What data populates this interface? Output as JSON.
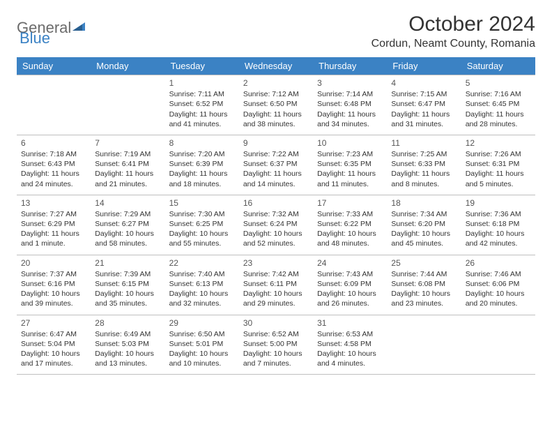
{
  "logo": {
    "text1": "General",
    "text2": "Blue",
    "text1_color": "#6b6b6b",
    "text2_color": "#3b82c4"
  },
  "title": "October 2024",
  "location": "Cordun, Neamt County, Romania",
  "colors": {
    "header_bg": "#3b82c4",
    "header_text": "#ffffff",
    "border": "#bfbfbf",
    "body_text": "#333333"
  },
  "day_headers": [
    "Sunday",
    "Monday",
    "Tuesday",
    "Wednesday",
    "Thursday",
    "Friday",
    "Saturday"
  ],
  "weeks": [
    [
      {
        "num": "",
        "sunrise": "",
        "sunset": "",
        "daylight": ""
      },
      {
        "num": "",
        "sunrise": "",
        "sunset": "",
        "daylight": ""
      },
      {
        "num": "1",
        "sunrise": "Sunrise: 7:11 AM",
        "sunset": "Sunset: 6:52 PM",
        "daylight": "Daylight: 11 hours and 41 minutes."
      },
      {
        "num": "2",
        "sunrise": "Sunrise: 7:12 AM",
        "sunset": "Sunset: 6:50 PM",
        "daylight": "Daylight: 11 hours and 38 minutes."
      },
      {
        "num": "3",
        "sunrise": "Sunrise: 7:14 AM",
        "sunset": "Sunset: 6:48 PM",
        "daylight": "Daylight: 11 hours and 34 minutes."
      },
      {
        "num": "4",
        "sunrise": "Sunrise: 7:15 AM",
        "sunset": "Sunset: 6:47 PM",
        "daylight": "Daylight: 11 hours and 31 minutes."
      },
      {
        "num": "5",
        "sunrise": "Sunrise: 7:16 AM",
        "sunset": "Sunset: 6:45 PM",
        "daylight": "Daylight: 11 hours and 28 minutes."
      }
    ],
    [
      {
        "num": "6",
        "sunrise": "Sunrise: 7:18 AM",
        "sunset": "Sunset: 6:43 PM",
        "daylight": "Daylight: 11 hours and 24 minutes."
      },
      {
        "num": "7",
        "sunrise": "Sunrise: 7:19 AM",
        "sunset": "Sunset: 6:41 PM",
        "daylight": "Daylight: 11 hours and 21 minutes."
      },
      {
        "num": "8",
        "sunrise": "Sunrise: 7:20 AM",
        "sunset": "Sunset: 6:39 PM",
        "daylight": "Daylight: 11 hours and 18 minutes."
      },
      {
        "num": "9",
        "sunrise": "Sunrise: 7:22 AM",
        "sunset": "Sunset: 6:37 PM",
        "daylight": "Daylight: 11 hours and 14 minutes."
      },
      {
        "num": "10",
        "sunrise": "Sunrise: 7:23 AM",
        "sunset": "Sunset: 6:35 PM",
        "daylight": "Daylight: 11 hours and 11 minutes."
      },
      {
        "num": "11",
        "sunrise": "Sunrise: 7:25 AM",
        "sunset": "Sunset: 6:33 PM",
        "daylight": "Daylight: 11 hours and 8 minutes."
      },
      {
        "num": "12",
        "sunrise": "Sunrise: 7:26 AM",
        "sunset": "Sunset: 6:31 PM",
        "daylight": "Daylight: 11 hours and 5 minutes."
      }
    ],
    [
      {
        "num": "13",
        "sunrise": "Sunrise: 7:27 AM",
        "sunset": "Sunset: 6:29 PM",
        "daylight": "Daylight: 11 hours and 1 minute."
      },
      {
        "num": "14",
        "sunrise": "Sunrise: 7:29 AM",
        "sunset": "Sunset: 6:27 PM",
        "daylight": "Daylight: 10 hours and 58 minutes."
      },
      {
        "num": "15",
        "sunrise": "Sunrise: 7:30 AM",
        "sunset": "Sunset: 6:25 PM",
        "daylight": "Daylight: 10 hours and 55 minutes."
      },
      {
        "num": "16",
        "sunrise": "Sunrise: 7:32 AM",
        "sunset": "Sunset: 6:24 PM",
        "daylight": "Daylight: 10 hours and 52 minutes."
      },
      {
        "num": "17",
        "sunrise": "Sunrise: 7:33 AM",
        "sunset": "Sunset: 6:22 PM",
        "daylight": "Daylight: 10 hours and 48 minutes."
      },
      {
        "num": "18",
        "sunrise": "Sunrise: 7:34 AM",
        "sunset": "Sunset: 6:20 PM",
        "daylight": "Daylight: 10 hours and 45 minutes."
      },
      {
        "num": "19",
        "sunrise": "Sunrise: 7:36 AM",
        "sunset": "Sunset: 6:18 PM",
        "daylight": "Daylight: 10 hours and 42 minutes."
      }
    ],
    [
      {
        "num": "20",
        "sunrise": "Sunrise: 7:37 AM",
        "sunset": "Sunset: 6:16 PM",
        "daylight": "Daylight: 10 hours and 39 minutes."
      },
      {
        "num": "21",
        "sunrise": "Sunrise: 7:39 AM",
        "sunset": "Sunset: 6:15 PM",
        "daylight": "Daylight: 10 hours and 35 minutes."
      },
      {
        "num": "22",
        "sunrise": "Sunrise: 7:40 AM",
        "sunset": "Sunset: 6:13 PM",
        "daylight": "Daylight: 10 hours and 32 minutes."
      },
      {
        "num": "23",
        "sunrise": "Sunrise: 7:42 AM",
        "sunset": "Sunset: 6:11 PM",
        "daylight": "Daylight: 10 hours and 29 minutes."
      },
      {
        "num": "24",
        "sunrise": "Sunrise: 7:43 AM",
        "sunset": "Sunset: 6:09 PM",
        "daylight": "Daylight: 10 hours and 26 minutes."
      },
      {
        "num": "25",
        "sunrise": "Sunrise: 7:44 AM",
        "sunset": "Sunset: 6:08 PM",
        "daylight": "Daylight: 10 hours and 23 minutes."
      },
      {
        "num": "26",
        "sunrise": "Sunrise: 7:46 AM",
        "sunset": "Sunset: 6:06 PM",
        "daylight": "Daylight: 10 hours and 20 minutes."
      }
    ],
    [
      {
        "num": "27",
        "sunrise": "Sunrise: 6:47 AM",
        "sunset": "Sunset: 5:04 PM",
        "daylight": "Daylight: 10 hours and 17 minutes."
      },
      {
        "num": "28",
        "sunrise": "Sunrise: 6:49 AM",
        "sunset": "Sunset: 5:03 PM",
        "daylight": "Daylight: 10 hours and 13 minutes."
      },
      {
        "num": "29",
        "sunrise": "Sunrise: 6:50 AM",
        "sunset": "Sunset: 5:01 PM",
        "daylight": "Daylight: 10 hours and 10 minutes."
      },
      {
        "num": "30",
        "sunrise": "Sunrise: 6:52 AM",
        "sunset": "Sunset: 5:00 PM",
        "daylight": "Daylight: 10 hours and 7 minutes."
      },
      {
        "num": "31",
        "sunrise": "Sunrise: 6:53 AM",
        "sunset": "Sunset: 4:58 PM",
        "daylight": "Daylight: 10 hours and 4 minutes."
      },
      {
        "num": "",
        "sunrise": "",
        "sunset": "",
        "daylight": ""
      },
      {
        "num": "",
        "sunrise": "",
        "sunset": "",
        "daylight": ""
      }
    ]
  ]
}
